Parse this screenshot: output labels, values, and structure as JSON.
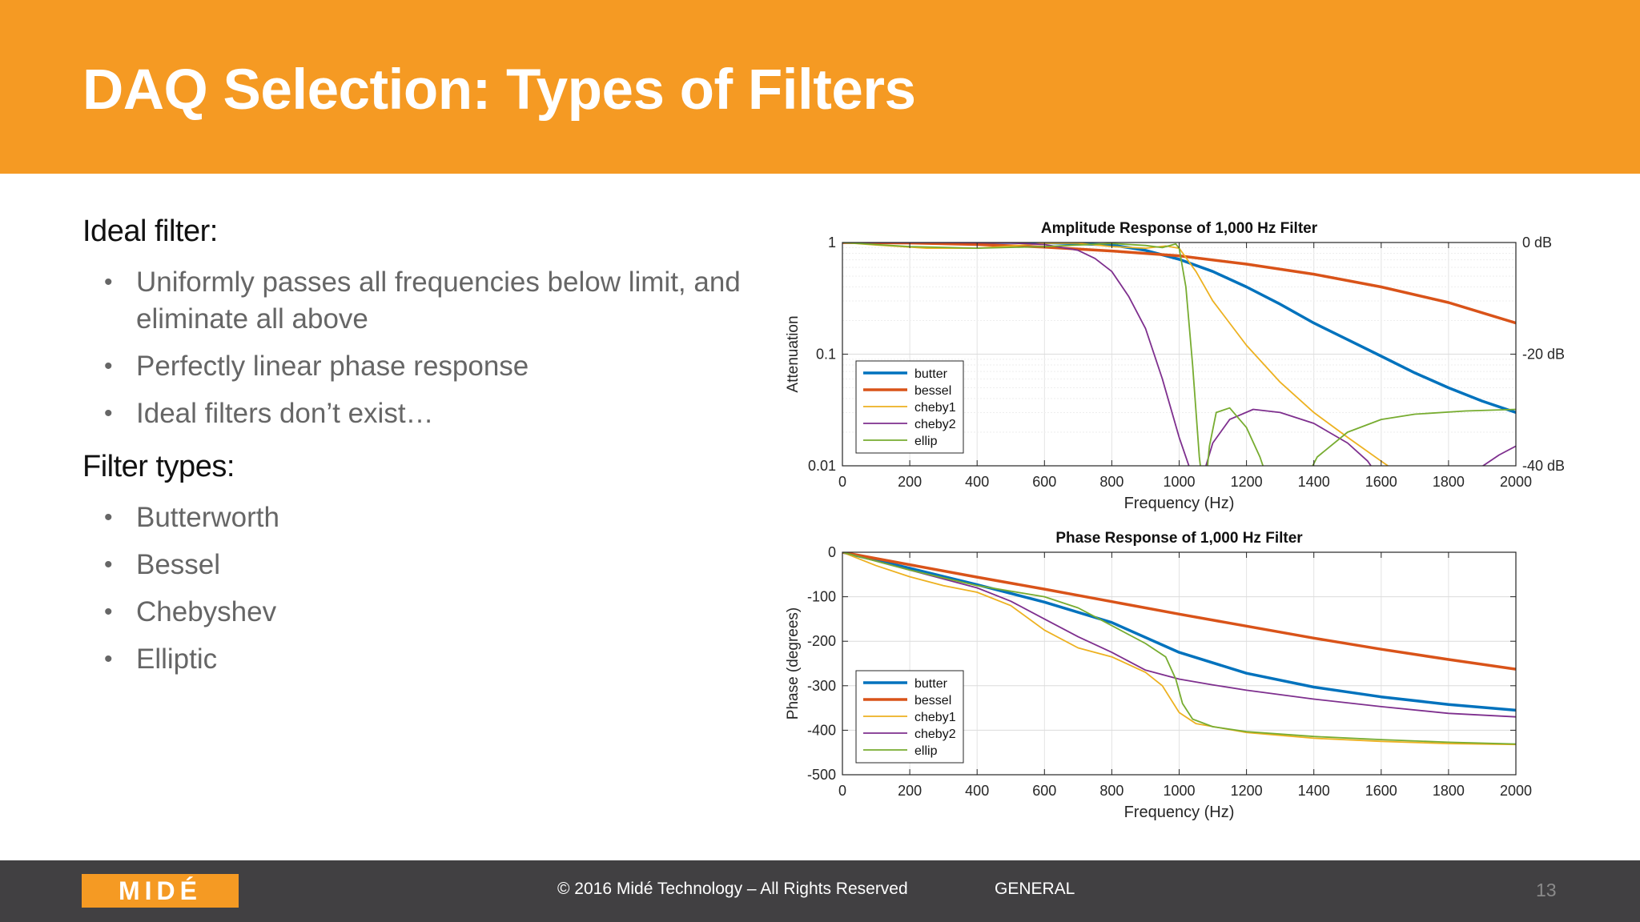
{
  "slide": {
    "title": "DAQ Selection: Types of Filters",
    "ideal_heading": "Ideal filter:",
    "ideal_bullets": [
      "Uniformly passes all frequencies below limit, and eliminate all above",
      "Perfectly linear phase response",
      "Ideal filters don’t exist…"
    ],
    "types_heading": "Filter types:",
    "type_bullets": [
      "Butterworth",
      "Bessel",
      "Chebyshev",
      "Elliptic"
    ]
  },
  "footer": {
    "logo_text": "MIDÉ",
    "copyright": "© 2016 Midé Technology – All Rights Reserved",
    "classification": "GENERAL",
    "page_number": "13"
  },
  "colors": {
    "header": "#f59a23",
    "footer": "#414042",
    "butter": "#0072bd",
    "bessel": "#d95319",
    "cheby1": "#edb120",
    "cheby2": "#7e2f8e",
    "ellip": "#77ac30"
  },
  "chart_data": [
    {
      "type": "line",
      "title": "Amplitude Response of 1,000 Hz Filter",
      "xlabel": "Frequency (Hz)",
      "ylabel": "Attenuation",
      "xlim": [
        0,
        2000
      ],
      "ylim": [
        0.01,
        1
      ],
      "y_scale": "log",
      "x_ticks": [
        0,
        200,
        400,
        600,
        800,
        1000,
        1200,
        1400,
        1600,
        1800,
        2000
      ],
      "y_ticks": [
        {
          "value": 1,
          "label": "1"
        },
        {
          "value": 0.1,
          "label": "0.1"
        },
        {
          "value": 0.01,
          "label": "0.01"
        }
      ],
      "right_ticks": [
        {
          "value": 1,
          "label": "0 dB"
        },
        {
          "value": 0.1,
          "label": "-20 dB"
        },
        {
          "value": 0.01,
          "label": "-40 dB"
        }
      ],
      "grid": true,
      "legend": "left",
      "series": [
        {
          "name": "butter",
          "color": "#0072bd",
          "width": 3.5,
          "points": [
            [
              0,
              1
            ],
            [
              400,
              1
            ],
            [
              600,
              0.998
            ],
            [
              800,
              0.95
            ],
            [
              900,
              0.85
            ],
            [
              1000,
              0.707
            ],
            [
              1100,
              0.55
            ],
            [
              1200,
              0.4
            ],
            [
              1300,
              0.28
            ],
            [
              1400,
              0.19
            ],
            [
              1500,
              0.135
            ],
            [
              1600,
              0.096
            ],
            [
              1700,
              0.068
            ],
            [
              1800,
              0.05
            ],
            [
              1900,
              0.038
            ],
            [
              2000,
              0.03
            ]
          ]
        },
        {
          "name": "bessel",
          "color": "#d95319",
          "width": 3.5,
          "points": [
            [
              0,
              1
            ],
            [
              200,
              0.99
            ],
            [
              400,
              0.96
            ],
            [
              600,
              0.91
            ],
            [
              800,
              0.84
            ],
            [
              1000,
              0.76
            ],
            [
              1200,
              0.64
            ],
            [
              1400,
              0.52
            ],
            [
              1600,
              0.4
            ],
            [
              1800,
              0.29
            ],
            [
              2000,
              0.19
            ]
          ]
        },
        {
          "name": "cheby1",
          "color": "#edb120",
          "width": 1.8,
          "points": [
            [
              0,
              1
            ],
            [
              100,
              0.95
            ],
            [
              250,
              0.89
            ],
            [
              400,
              0.89
            ],
            [
              500,
              0.93
            ],
            [
              600,
              0.985
            ],
            [
              700,
              0.985
            ],
            [
              800,
              0.92
            ],
            [
              900,
              0.89
            ],
            [
              960,
              0.93
            ],
            [
              1000,
              0.89
            ],
            [
              1050,
              0.55
            ],
            [
              1100,
              0.3
            ],
            [
              1200,
              0.12
            ],
            [
              1300,
              0.056
            ],
            [
              1400,
              0.03
            ],
            [
              1500,
              0.018
            ],
            [
              1600,
              0.011
            ],
            [
              1620,
              0.01
            ]
          ]
        },
        {
          "name": "cheby2",
          "color": "#7e2f8e",
          "width": 1.8,
          "points": [
            [
              0,
              1
            ],
            [
              300,
              1
            ],
            [
              500,
              0.99
            ],
            [
              600,
              0.96
            ],
            [
              700,
              0.85
            ],
            [
              750,
              0.72
            ],
            [
              800,
              0.55
            ],
            [
              850,
              0.33
            ],
            [
              900,
              0.17
            ],
            [
              950,
              0.06
            ],
            [
              1000,
              0.018
            ],
            [
              1040,
              0.008
            ],
            [
              1070,
              0.008
            ],
            [
              1100,
              0.016
            ],
            [
              1150,
              0.026
            ],
            [
              1220,
              0.032
            ],
            [
              1300,
              0.03
            ],
            [
              1400,
              0.024
            ],
            [
              1500,
              0.016
            ],
            [
              1560,
              0.011
            ],
            [
              1580,
              0.009
            ],
            [
              1700,
              0.005
            ],
            [
              1880,
              0.009
            ],
            [
              1950,
              0.0125
            ],
            [
              2000,
              0.015
            ]
          ]
        },
        {
          "name": "ellip",
          "color": "#77ac30",
          "width": 1.8,
          "points": [
            [
              0,
              1
            ],
            [
              200,
              0.92
            ],
            [
              400,
              0.89
            ],
            [
              600,
              0.92
            ],
            [
              800,
              0.98
            ],
            [
              900,
              0.94
            ],
            [
              950,
              0.9
            ],
            [
              990,
              0.97
            ],
            [
              1000,
              0.89
            ],
            [
              1020,
              0.4
            ],
            [
              1040,
              0.08
            ],
            [
              1060,
              0.012
            ],
            [
              1075,
              0.005
            ],
            [
              1090,
              0.015
            ],
            [
              1110,
              0.03
            ],
            [
              1150,
              0.033
            ],
            [
              1200,
              0.022
            ],
            [
              1240,
              0.012
            ],
            [
              1260,
              0.008
            ],
            [
              1380,
              0.008
            ],
            [
              1410,
              0.012
            ],
            [
              1500,
              0.02
            ],
            [
              1600,
              0.026
            ],
            [
              1700,
              0.029
            ],
            [
              1850,
              0.031
            ],
            [
              2000,
              0.032
            ]
          ]
        }
      ]
    },
    {
      "type": "line",
      "title": "Phase Response of 1,000 Hz Filter",
      "xlabel": "Frequency (Hz)",
      "ylabel": "Phase (degrees)",
      "xlim": [
        0,
        2000
      ],
      "ylim": [
        -500,
        0
      ],
      "x_ticks": [
        0,
        200,
        400,
        600,
        800,
        1000,
        1200,
        1400,
        1600,
        1800,
        2000
      ],
      "y_ticks": [
        {
          "value": 0,
          "label": "0"
        },
        {
          "value": -100,
          "label": "-100"
        },
        {
          "value": -200,
          "label": "-200"
        },
        {
          "value": -300,
          "label": "-300"
        },
        {
          "value": -400,
          "label": "-400"
        },
        {
          "value": -500,
          "label": "-500"
        }
      ],
      "grid": true,
      "legend": "left",
      "series": [
        {
          "name": "butter",
          "color": "#0072bd",
          "width": 3.5,
          "points": [
            [
              0,
              0
            ],
            [
              200,
              -36
            ],
            [
              400,
              -73
            ],
            [
              600,
              -112
            ],
            [
              800,
              -158
            ],
            [
              1000,
              -225
            ],
            [
              1200,
              -272
            ],
            [
              1400,
              -303
            ],
            [
              1600,
              -325
            ],
            [
              1800,
              -342
            ],
            [
              2000,
              -355
            ]
          ]
        },
        {
          "name": "bessel",
          "color": "#d95319",
          "width": 3.5,
          "points": [
            [
              0,
              0
            ],
            [
              200,
              -28
            ],
            [
              400,
              -56
            ],
            [
              600,
              -83
            ],
            [
              800,
              -111
            ],
            [
              1000,
              -139
            ],
            [
              1200,
              -166
            ],
            [
              1400,
              -193
            ],
            [
              1600,
              -218
            ],
            [
              1800,
              -241
            ],
            [
              2000,
              -263
            ]
          ]
        },
        {
          "name": "cheby1",
          "color": "#edb120",
          "width": 1.8,
          "points": [
            [
              0,
              0
            ],
            [
              100,
              -30
            ],
            [
              200,
              -55
            ],
            [
              300,
              -75
            ],
            [
              400,
              -90
            ],
            [
              500,
              -120
            ],
            [
              600,
              -175
            ],
            [
              700,
              -215
            ],
            [
              800,
              -235
            ],
            [
              900,
              -270
            ],
            [
              950,
              -300
            ],
            [
              1000,
              -360
            ],
            [
              1050,
              -385
            ],
            [
              1200,
              -405
            ],
            [
              1400,
              -418
            ],
            [
              1600,
              -425
            ],
            [
              1800,
              -430
            ],
            [
              2000,
              -432
            ]
          ]
        },
        {
          "name": "cheby2",
          "color": "#7e2f8e",
          "width": 1.8,
          "points": [
            [
              0,
              0
            ],
            [
              200,
              -40
            ],
            [
              400,
              -80
            ],
            [
              500,
              -110
            ],
            [
              600,
              -150
            ],
            [
              700,
              -190
            ],
            [
              800,
              -225
            ],
            [
              850,
              -245
            ],
            [
              900,
              -265
            ],
            [
              1000,
              -285
            ],
            [
              1100,
              -298
            ],
            [
              1200,
              -310
            ],
            [
              1400,
              -330
            ],
            [
              1600,
              -347
            ],
            [
              1800,
              -362
            ],
            [
              2000,
              -370
            ]
          ]
        },
        {
          "name": "ellip",
          "color": "#77ac30",
          "width": 1.8,
          "points": [
            [
              0,
              0
            ],
            [
              200,
              -40
            ],
            [
              400,
              -75
            ],
            [
              600,
              -100
            ],
            [
              700,
              -125
            ],
            [
              800,
              -165
            ],
            [
              900,
              -205
            ],
            [
              960,
              -235
            ],
            [
              990,
              -285
            ],
            [
              1010,
              -340
            ],
            [
              1040,
              -375
            ],
            [
              1100,
              -392
            ],
            [
              1200,
              -403
            ],
            [
              1400,
              -414
            ],
            [
              1600,
              -421
            ],
            [
              1800,
              -427
            ],
            [
              2000,
              -431
            ]
          ]
        }
      ]
    }
  ]
}
